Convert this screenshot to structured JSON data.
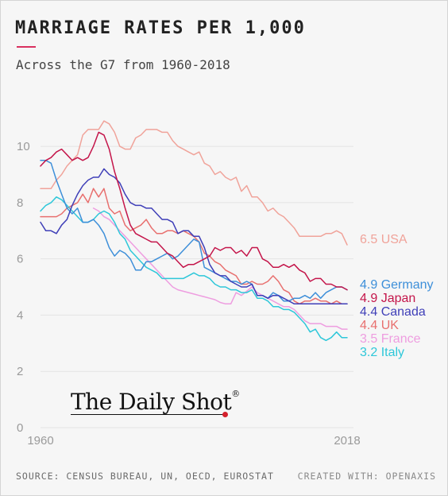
{
  "header": {
    "title": "MARRIAGE RATES PER 1,000",
    "subtitle": "Across the G7 from 1960-2018"
  },
  "brand": {
    "name": "The Daily Shot",
    "mark": "®"
  },
  "footer": {
    "source": "SOURCE: CENSUS BUREAU, UN, OECD, EUROSTAT",
    "credit": "CREATED WITH: OPENAXIS"
  },
  "chart_data": {
    "type": "line",
    "title": "MARRIAGE RATES PER 1,000",
    "subtitle": "Across the G7 from 1960-2018",
    "xlabel": "",
    "ylabel": "",
    "xlim": [
      1960,
      2018
    ],
    "ylim": [
      0,
      11.5
    ],
    "x_ticks": [
      "1960",
      "2018"
    ],
    "y_ticks": [
      0,
      2,
      4,
      6,
      8,
      10
    ],
    "grid": "horizontal",
    "legend": "labels at line ends (right)",
    "x": [
      1960,
      1961,
      1962,
      1963,
      1964,
      1965,
      1966,
      1967,
      1968,
      1969,
      1970,
      1971,
      1972,
      1973,
      1974,
      1975,
      1976,
      1977,
      1978,
      1979,
      1980,
      1981,
      1982,
      1983,
      1984,
      1985,
      1986,
      1987,
      1988,
      1989,
      1990,
      1991,
      1992,
      1993,
      1994,
      1995,
      1996,
      1997,
      1998,
      1999,
      2000,
      2001,
      2002,
      2003,
      2004,
      2005,
      2006,
      2007,
      2008,
      2009,
      2010,
      2011,
      2012,
      2013,
      2014,
      2015,
      2016,
      2017,
      2018
    ],
    "series": [
      {
        "name": "USA",
        "label": "6.5 USA",
        "color": "#f0a39a",
        "values": [
          8.5,
          8.5,
          8.5,
          8.8,
          9.0,
          9.3,
          9.5,
          9.7,
          10.4,
          10.6,
          10.6,
          10.6,
          10.9,
          10.8,
          10.5,
          10.0,
          9.9,
          9.9,
          10.3,
          10.4,
          10.6,
          10.6,
          10.6,
          10.5,
          10.5,
          10.2,
          10.0,
          9.9,
          9.8,
          9.7,
          9.8,
          9.4,
          9.3,
          9.0,
          9.1,
          8.9,
          8.8,
          8.9,
          8.4,
          8.6,
          8.2,
          8.2,
          8.0,
          7.7,
          7.8,
          7.6,
          7.5,
          7.3,
          7.1,
          6.8,
          6.8,
          6.8,
          6.8,
          6.8,
          6.9,
          6.9,
          7.0,
          6.9,
          6.5
        ]
      },
      {
        "name": "Germany",
        "label": "4.9 Germany",
        "color": "#3d8fd9",
        "values": [
          9.5,
          9.5,
          9.4,
          8.8,
          8.3,
          7.8,
          7.6,
          7.8,
          7.3,
          7.3,
          7.4,
          7.2,
          6.9,
          6.4,
          6.1,
          6.3,
          6.2,
          6.0,
          5.6,
          5.6,
          5.9,
          5.9,
          6.0,
          6.1,
          6.2,
          6.0,
          6.1,
          6.3,
          6.5,
          6.7,
          6.6,
          5.7,
          5.6,
          5.5,
          5.4,
          5.3,
          5.2,
          5.2,
          5.1,
          5.2,
          5.1,
          4.7,
          4.7,
          4.6,
          4.8,
          4.7,
          4.5,
          4.5,
          4.6,
          4.6,
          4.7,
          4.6,
          4.8,
          4.6,
          4.8,
          4.9,
          5.0,
          5.0,
          4.9
        ]
      },
      {
        "name": "Japan",
        "label": "4.9 Japan",
        "color": "#c4154a",
        "values": [
          9.3,
          9.5,
          9.6,
          9.8,
          9.9,
          9.7,
          9.5,
          9.6,
          9.5,
          9.6,
          10.0,
          10.5,
          10.4,
          9.9,
          9.1,
          8.5,
          7.8,
          7.2,
          6.9,
          6.8,
          6.7,
          6.6,
          6.6,
          6.4,
          6.2,
          6.1,
          5.9,
          5.7,
          5.8,
          5.8,
          5.9,
          6.0,
          6.1,
          6.4,
          6.3,
          6.4,
          6.4,
          6.2,
          6.3,
          6.1,
          6.4,
          6.4,
          6.0,
          5.9,
          5.7,
          5.7,
          5.8,
          5.7,
          5.8,
          5.6,
          5.5,
          5.2,
          5.3,
          5.3,
          5.1,
          5.1,
          5.0,
          5.0,
          4.9
        ]
      },
      {
        "name": "Canada",
        "label": "4.4 Canada",
        "color": "#3f3fb8",
        "values": [
          7.3,
          7.0,
          7.0,
          6.9,
          7.2,
          7.4,
          7.9,
          8.3,
          8.6,
          8.8,
          8.9,
          8.9,
          9.2,
          9.0,
          8.9,
          8.7,
          8.3,
          8.0,
          7.9,
          7.9,
          7.8,
          7.8,
          7.6,
          7.4,
          7.4,
          7.3,
          6.9,
          7.0,
          7.0,
          6.8,
          6.8,
          6.4,
          5.8,
          5.5,
          5.4,
          5.4,
          5.2,
          5.1,
          5.0,
          5.0,
          5.1,
          4.7,
          4.7,
          4.6,
          4.7,
          4.7,
          4.6,
          4.5,
          4.4,
          4.4,
          4.4,
          4.4,
          4.4,
          4.4,
          4.4,
          4.4,
          4.4,
          4.4,
          4.4
        ]
      },
      {
        "name": "UK",
        "label": "4.4 UK",
        "color": "#e8706f",
        "values": [
          7.5,
          7.5,
          7.5,
          7.5,
          7.6,
          7.8,
          7.9,
          8.0,
          8.3,
          8.0,
          8.5,
          8.2,
          8.5,
          7.8,
          7.6,
          7.7,
          7.2,
          7.0,
          7.1,
          7.2,
          7.4,
          7.1,
          6.9,
          6.9,
          7.0,
          7.0,
          6.9,
          7.0,
          6.9,
          6.8,
          6.6,
          6.2,
          6.1,
          5.9,
          5.8,
          5.6,
          5.5,
          5.4,
          5.1,
          5.1,
          5.2,
          5.1,
          5.1,
          5.2,
          5.4,
          5.2,
          4.9,
          4.8,
          4.5,
          4.4,
          4.5,
          4.5,
          4.6,
          4.5,
          4.5,
          4.4,
          4.5,
          4.4,
          4.4
        ]
      },
      {
        "name": "France",
        "label": "3.5 France",
        "color": "#ee9de0",
        "values": [
          null,
          null,
          null,
          null,
          null,
          null,
          null,
          null,
          null,
          null,
          7.8,
          7.7,
          7.5,
          7.4,
          7.2,
          7.0,
          6.8,
          6.6,
          6.4,
          6.2,
          6.0,
          5.8,
          5.6,
          5.4,
          5.2,
          5.0,
          4.9,
          4.85,
          4.8,
          4.75,
          4.7,
          4.65,
          4.6,
          4.55,
          4.45,
          4.4,
          4.4,
          4.8,
          4.7,
          4.85,
          5.0,
          4.8,
          4.7,
          4.6,
          4.5,
          4.4,
          4.3,
          4.3,
          4.2,
          4.0,
          3.8,
          3.7,
          3.7,
          3.7,
          3.6,
          3.6,
          3.6,
          3.5,
          3.5
        ]
      },
      {
        "name": "Italy",
        "label": "3.2 Italy",
        "color": "#2ec7d9",
        "values": [
          7.7,
          7.9,
          8.0,
          8.2,
          8.1,
          7.9,
          7.7,
          7.5,
          7.3,
          7.3,
          7.4,
          7.6,
          7.7,
          7.6,
          7.3,
          6.9,
          6.7,
          6.3,
          6.1,
          5.9,
          5.7,
          5.6,
          5.5,
          5.3,
          5.3,
          5.3,
          5.3,
          5.3,
          5.4,
          5.5,
          5.4,
          5.4,
          5.3,
          5.1,
          5.0,
          5.0,
          4.9,
          4.9,
          4.8,
          4.8,
          4.9,
          4.6,
          4.6,
          4.5,
          4.3,
          4.3,
          4.2,
          4.2,
          4.1,
          3.9,
          3.7,
          3.4,
          3.5,
          3.2,
          3.1,
          3.2,
          3.4,
          3.2,
          3.2
        ]
      }
    ]
  }
}
